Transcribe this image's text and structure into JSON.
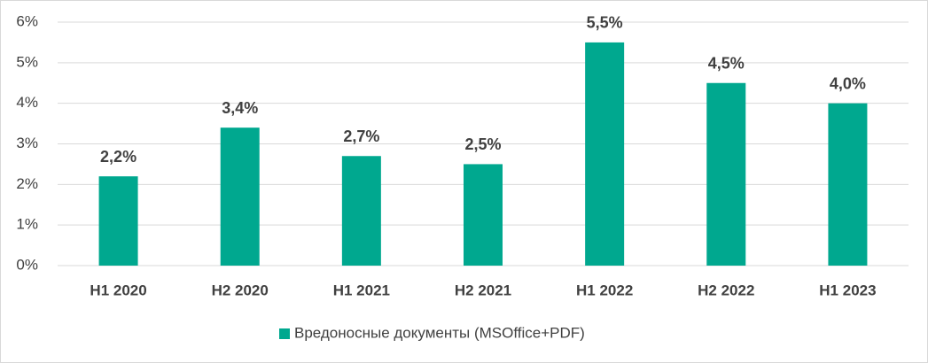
{
  "chart_data": {
    "type": "bar",
    "categories": [
      "H1 2020",
      "H2 2020",
      "H1 2021",
      "H2 2021",
      "H1 2022",
      "H2 2022",
      "H1 2023"
    ],
    "series": [
      {
        "name": "Вредоносные документы (MSOffice+PDF)",
        "color": "#00a88f",
        "values": [
          2.2,
          3.4,
          2.7,
          2.5,
          5.5,
          4.5,
          4.0
        ],
        "value_labels": [
          "2,2%",
          "3,4%",
          "2,7%",
          "2,5%",
          "5,5%",
          "4,5%",
          "4,0%"
        ]
      }
    ],
    "ylim": [
      0,
      6
    ],
    "yticks": [
      {
        "value": 0,
        "label": "0%"
      },
      {
        "value": 1,
        "label": "1%"
      },
      {
        "value": 2,
        "label": "2%"
      },
      {
        "value": 3,
        "label": "3%"
      },
      {
        "value": 4,
        "label": "4%"
      },
      {
        "value": 5,
        "label": "5%"
      },
      {
        "value": 6,
        "label": "6%"
      }
    ],
    "grid": true,
    "legend": "bottom"
  }
}
